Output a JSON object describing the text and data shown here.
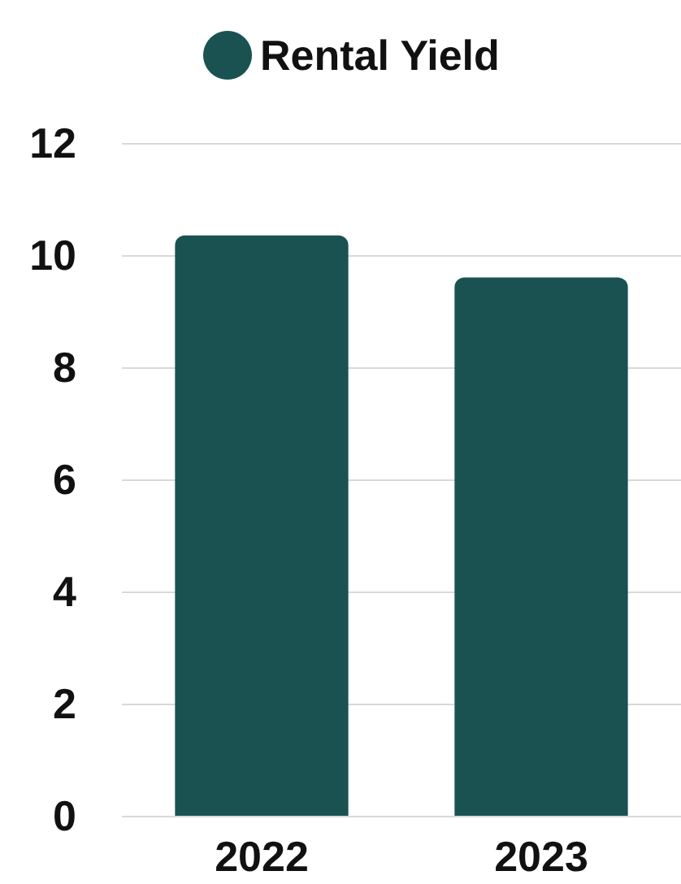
{
  "chart_data": {
    "type": "bar",
    "categories": [
      "2022",
      "2023"
    ],
    "series": [
      {
        "name": "Rental Yield",
        "color": "#1a5252",
        "values": [
          10.35,
          9.6
        ]
      }
    ],
    "ylim": [
      0,
      12
    ],
    "yticks": [
      0,
      2,
      4,
      6,
      8,
      10,
      12
    ],
    "grid": "y",
    "legend": "top"
  }
}
